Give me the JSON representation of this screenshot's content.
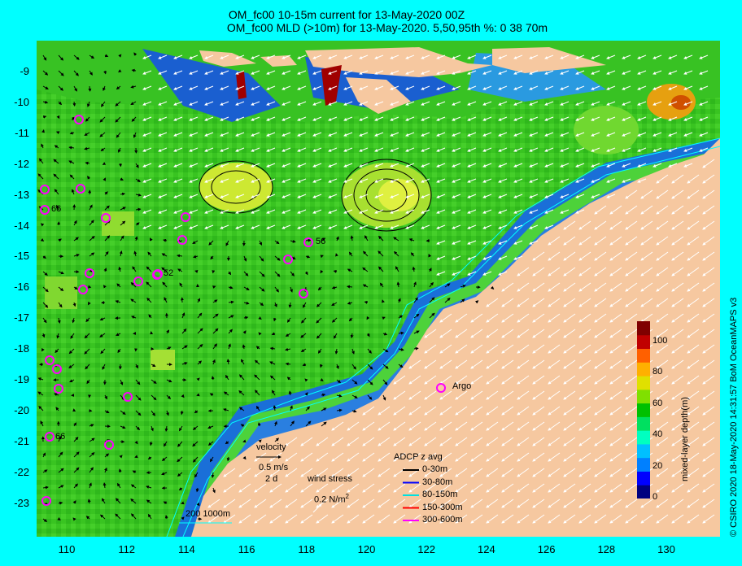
{
  "title_line1": "OM_fc00 10-15m current for 13-May-2020 00Z",
  "title_line2": "OM_fc00 MLD (>10m) for 13-May-2020. 5,50,95th %: 0  38  70m",
  "lat_labels": [
    "-9",
    "-10",
    "-11",
    "-12",
    "-13",
    "-14",
    "-15",
    "-16",
    "-17",
    "-18",
    "-19",
    "-20",
    "-21",
    "-22",
    "-23"
  ],
  "lon_labels": [
    "110",
    "112",
    "114",
    "116",
    "118",
    "120",
    "122",
    "124",
    "126",
    "128",
    "130"
  ],
  "credit": "© CSIRO 2020   18-May-2020 14:31:57 BoM OceanMAPS v3",
  "velocity_legend": {
    "title": "velocity",
    "speed": "0.5 m/s",
    "duration": "2 d"
  },
  "wind_legend": {
    "title": "wind stress",
    "value": "0.2 N/m",
    "superscript": "2"
  },
  "isobath_legend": "200  1000m",
  "adcp_legend": {
    "title": "ADCP z avg",
    "items": [
      {
        "label": "0-30m",
        "color": "#000000"
      },
      {
        "label": "30-80m",
        "color": "#0000ff"
      },
      {
        "label": "80-150m",
        "color": "#00e0e0"
      },
      {
        "label": "150-300m",
        "color": "#ff0000"
      },
      {
        "label": "300-600m",
        "color": "#ff00ff"
      }
    ]
  },
  "argo_label": "Argo",
  "float_ids": [
    "66",
    "56",
    "52",
    "66"
  ],
  "colorbar": {
    "title": "mixed-layer depth(m)",
    "ticks": [
      "0",
      "20",
      "40",
      "60",
      "80",
      "100"
    ],
    "colors": [
      "#000080",
      "#0000ff",
      "#0080ff",
      "#00c0ff",
      "#00ffc0",
      "#00e060",
      "#00c000",
      "#80e000",
      "#e0e000",
      "#ffb000",
      "#ff6000",
      "#c00000",
      "#800000"
    ]
  },
  "land_color": "#f6c8a0"
}
